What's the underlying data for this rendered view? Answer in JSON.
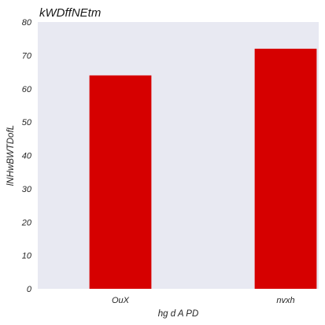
{
  "chart_data": {
    "type": "bar",
    "title": "kWDffNEtm",
    "xlabel": "hg d  A PD",
    "ylabel": "lNHwBWTDofL",
    "categories": [
      "OuX",
      "nvxh"
    ],
    "values": [
      64,
      72
    ],
    "ylim": [
      0,
      80
    ],
    "yticks": [
      0,
      10,
      20,
      30,
      40,
      50,
      60,
      70,
      80
    ],
    "grid": false,
    "legend": "none",
    "colors": {
      "bar": "#d60000",
      "plot_background": "#e8e9f2",
      "text": "#262626"
    }
  }
}
